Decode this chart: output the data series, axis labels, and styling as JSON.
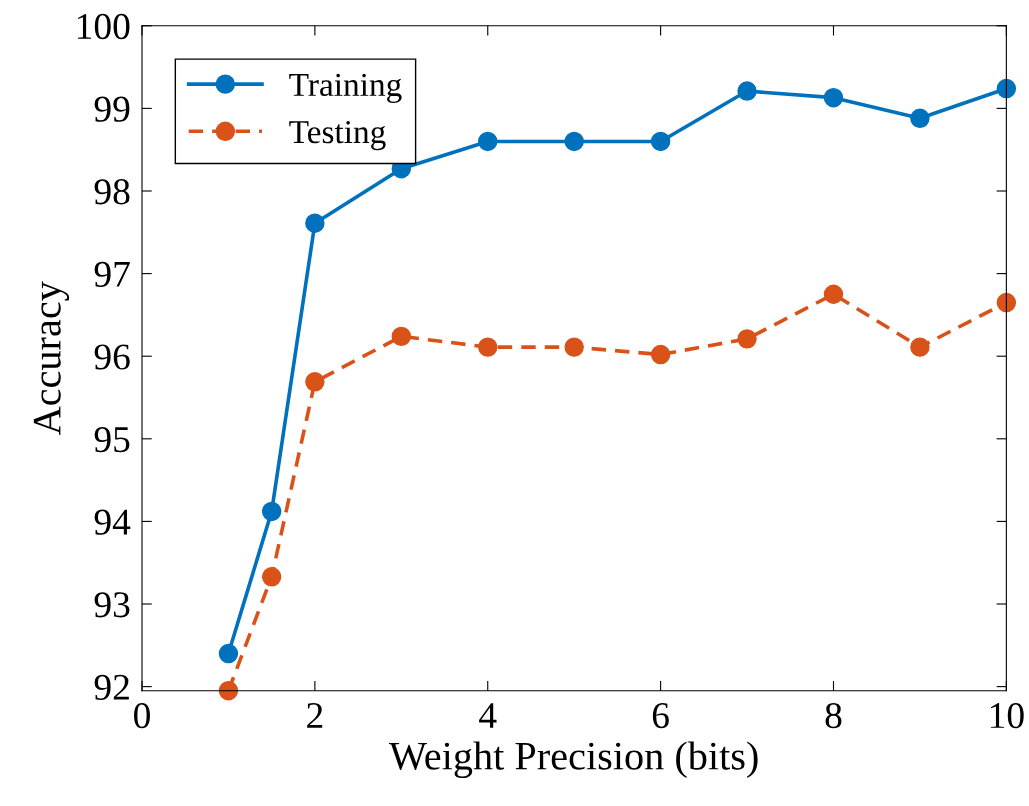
{
  "chart_data": {
    "type": "line",
    "xlabel": "Weight Precision (bits)",
    "ylabel": "Accuracy",
    "x": [
      1,
      1.5,
      2,
      3,
      4,
      5,
      6,
      7,
      8,
      9,
      10
    ],
    "series": [
      {
        "name": "Training",
        "color": "#0072bd",
        "line_style": "solid",
        "values": [
          92.4,
          94.12,
          97.61,
          98.27,
          98.6,
          98.6,
          98.6,
          99.21,
          99.13,
          98.88,
          99.24
        ]
      },
      {
        "name": "Testing",
        "color": "#d95319",
        "line_style": "dashed",
        "values": [
          91.95,
          93.33,
          95.69,
          96.24,
          96.11,
          96.11,
          96.02,
          96.21,
          96.75,
          96.11,
          96.65
        ]
      }
    ],
    "xlim": [
      0,
      10
    ],
    "xticks": [
      0,
      2,
      4,
      6,
      8,
      10
    ],
    "ylim": [
      91.95,
      100
    ],
    "yticks": [
      92,
      93,
      94,
      95,
      96,
      97,
      98,
      99,
      100
    ],
    "marker": "circle",
    "grid": false,
    "legend": "top left"
  }
}
